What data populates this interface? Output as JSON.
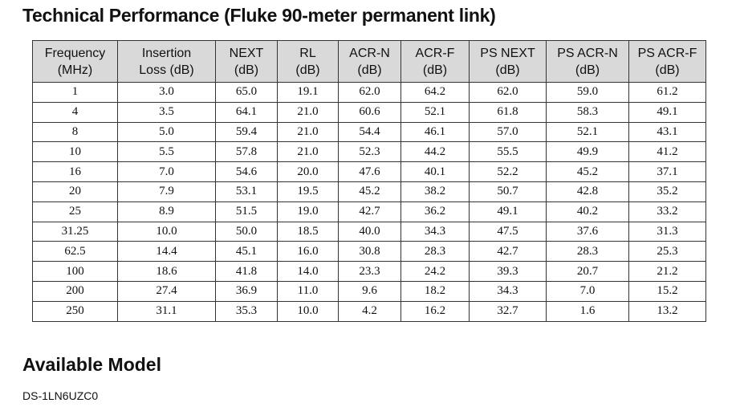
{
  "header": {
    "title": "Technical Performance (Fluke 90-meter permanent link)"
  },
  "table": {
    "columns": [
      [
        "Frequency",
        "(MHz)"
      ],
      [
        "Insertion",
        "Loss (dB)"
      ],
      [
        "NEXT",
        "(dB)"
      ],
      [
        "RL",
        "(dB)"
      ],
      [
        "ACR-N",
        "(dB)"
      ],
      [
        "ACR-F",
        "(dB)"
      ],
      [
        "PS NEXT",
        "(dB)"
      ],
      [
        "PS ACR-N",
        "(dB)"
      ],
      [
        "PS ACR-F",
        "(dB)"
      ]
    ],
    "rows": [
      [
        "1",
        "3.0",
        "65.0",
        "19.1",
        "62.0",
        "64.2",
        "62.0",
        "59.0",
        "61.2"
      ],
      [
        "4",
        "3.5",
        "64.1",
        "21.0",
        "60.6",
        "52.1",
        "61.8",
        "58.3",
        "49.1"
      ],
      [
        "8",
        "5.0",
        "59.4",
        "21.0",
        "54.4",
        "46.1",
        "57.0",
        "52.1",
        "43.1"
      ],
      [
        "10",
        "5.5",
        "57.8",
        "21.0",
        "52.3",
        "44.2",
        "55.5",
        "49.9",
        "41.2"
      ],
      [
        "16",
        "7.0",
        "54.6",
        "20.0",
        "47.6",
        "40.1",
        "52.2",
        "45.2",
        "37.1"
      ],
      [
        "20",
        "7.9",
        "53.1",
        "19.5",
        "45.2",
        "38.2",
        "50.7",
        "42.8",
        "35.2"
      ],
      [
        "25",
        "8.9",
        "51.5",
        "19.0",
        "42.7",
        "36.2",
        "49.1",
        "40.2",
        "33.2"
      ],
      [
        "31.25",
        "10.0",
        "50.0",
        "18.5",
        "40.0",
        "34.3",
        "47.5",
        "37.6",
        "31.3"
      ],
      [
        "62.5",
        "14.4",
        "45.1",
        "16.0",
        "30.8",
        "28.3",
        "42.7",
        "28.3",
        "25.3"
      ],
      [
        "100",
        "18.6",
        "41.8",
        "14.0",
        "23.3",
        "24.2",
        "39.3",
        "20.7",
        "21.2"
      ],
      [
        "200",
        "27.4",
        "36.9",
        "11.0",
        "9.6",
        "18.2",
        "34.3",
        "7.0",
        "15.2"
      ],
      [
        "250",
        "31.1",
        "35.3",
        "10.0",
        "4.2",
        "16.2",
        "32.7",
        "1.6",
        "13.2"
      ]
    ]
  },
  "model": {
    "title": "Available Model",
    "code": "DS-1LN6UZC0"
  }
}
